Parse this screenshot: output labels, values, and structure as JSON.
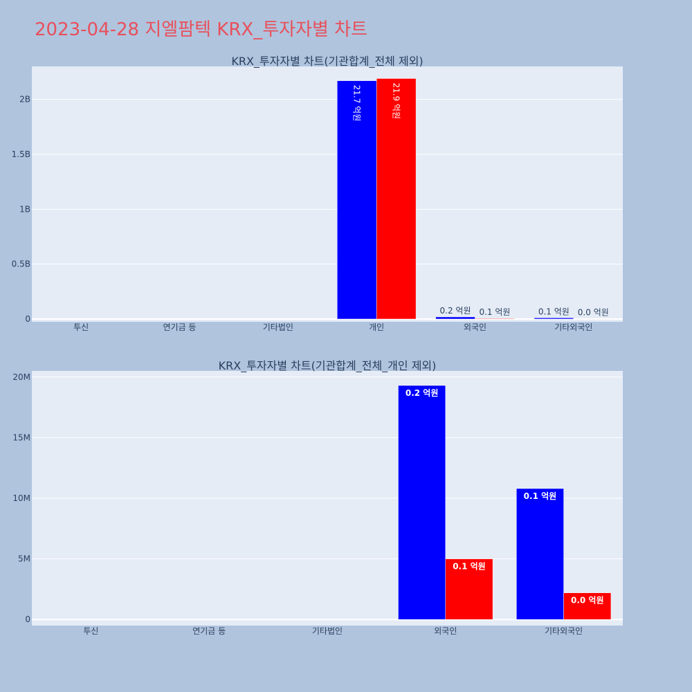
{
  "page": {
    "title": "2023-04-28 지엘팜텍 KRX_투자자별 차트",
    "title_color": "#e8505b",
    "background": "#b0c4de"
  },
  "chart_data": [
    {
      "type": "bar",
      "title": "KRX_투자자별 차트(기관합계_전체 제외)",
      "categories": [
        "투신",
        "연기금 등",
        "기타법인",
        "개인",
        "외국인",
        "기타외국인"
      ],
      "ylim": [
        -25000000,
        2300000000
      ],
      "yticks": [
        0,
        500000000,
        1000000000,
        1500000000,
        2000000000
      ],
      "ytick_labels": [
        "0",
        "0.5B",
        "1B",
        "1.5B",
        "2B"
      ],
      "grid": true,
      "series": [
        {
          "color": "#0000ff",
          "values": [
            0,
            0,
            0,
            2170000000,
            19300000,
            10800000
          ],
          "labels": [
            "",
            "",
            "",
            "21.7 억원",
            "0.2 억원",
            "0.1 억원"
          ]
        },
        {
          "color": "#ff0000",
          "values": [
            0,
            0,
            0,
            2190000000,
            5000000,
            2200000
          ],
          "labels": [
            "",
            "",
            "",
            "21.9 억원",
            "0.1 억원",
            "0.0 억원"
          ]
        }
      ]
    },
    {
      "type": "bar",
      "title": "KRX_투자자별 차트(기관합계_전체_개인 제외)",
      "categories": [
        "투신",
        "연기금 등",
        "기타법인",
        "외국인",
        "기타외국인"
      ],
      "ylim": [
        -500000,
        20500000
      ],
      "yticks": [
        0,
        5000000,
        10000000,
        15000000,
        20000000
      ],
      "ytick_labels": [
        "0",
        "5M",
        "10M",
        "15M",
        "20M"
      ],
      "grid": true,
      "series": [
        {
          "color": "#0000ff",
          "values": [
            0,
            0,
            0,
            19300000,
            10800000
          ],
          "labels": [
            "",
            "",
            "",
            "0.2 억원",
            "0.1 억원"
          ]
        },
        {
          "color": "#ff0000",
          "values": [
            0,
            0,
            0,
            5000000,
            2200000
          ],
          "labels": [
            "",
            "",
            "",
            "0.1 억원",
            "0.0 억원"
          ]
        }
      ]
    }
  ]
}
